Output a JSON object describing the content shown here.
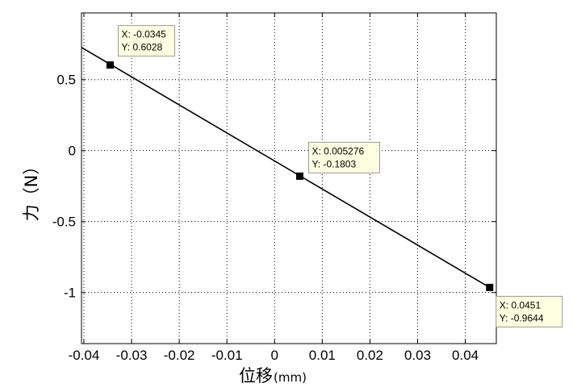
{
  "chart_data": {
    "type": "line",
    "xlabel": "位移",
    "xlabel_unit": "(mm)",
    "ylabel": "力（N）",
    "xlim": [
      -0.0405,
      0.0465
    ],
    "ylim": [
      -1.36,
      0.97
    ],
    "xticks": [
      -0.04,
      -0.03,
      -0.02,
      -0.01,
      0,
      0.01,
      0.02,
      0.03,
      0.04
    ],
    "xtick_labels": [
      "-0.04",
      "-0.03",
      "-0.02",
      "-0.01",
      "0",
      "0.01",
      "0.02",
      "0.03",
      "0.04"
    ],
    "yticks": [
      -1,
      -0.5,
      0,
      0.5
    ],
    "ytick_labels": [
      "-1",
      "-0.5",
      "0",
      "0.5"
    ],
    "grid": true,
    "series": [
      {
        "x": [
          -0.0405,
          0.04511
        ],
        "y": [
          0.7265,
          -0.9644
        ],
        "color": "#000000"
      }
    ],
    "markers": [
      {
        "x": -0.0345,
        "y": 0.6028,
        "label_x": "X: -0.0345",
        "label_y": "Y: 0.6028"
      },
      {
        "x": 0.005276,
        "y": -0.1803,
        "label_x": "X: 0.005276",
        "label_y": "Y: -0.1803"
      },
      {
        "x": 0.04511,
        "y": -0.9644,
        "label_x": "X: 0.0451",
        "label_y": "Y: -0.9644"
      }
    ]
  }
}
